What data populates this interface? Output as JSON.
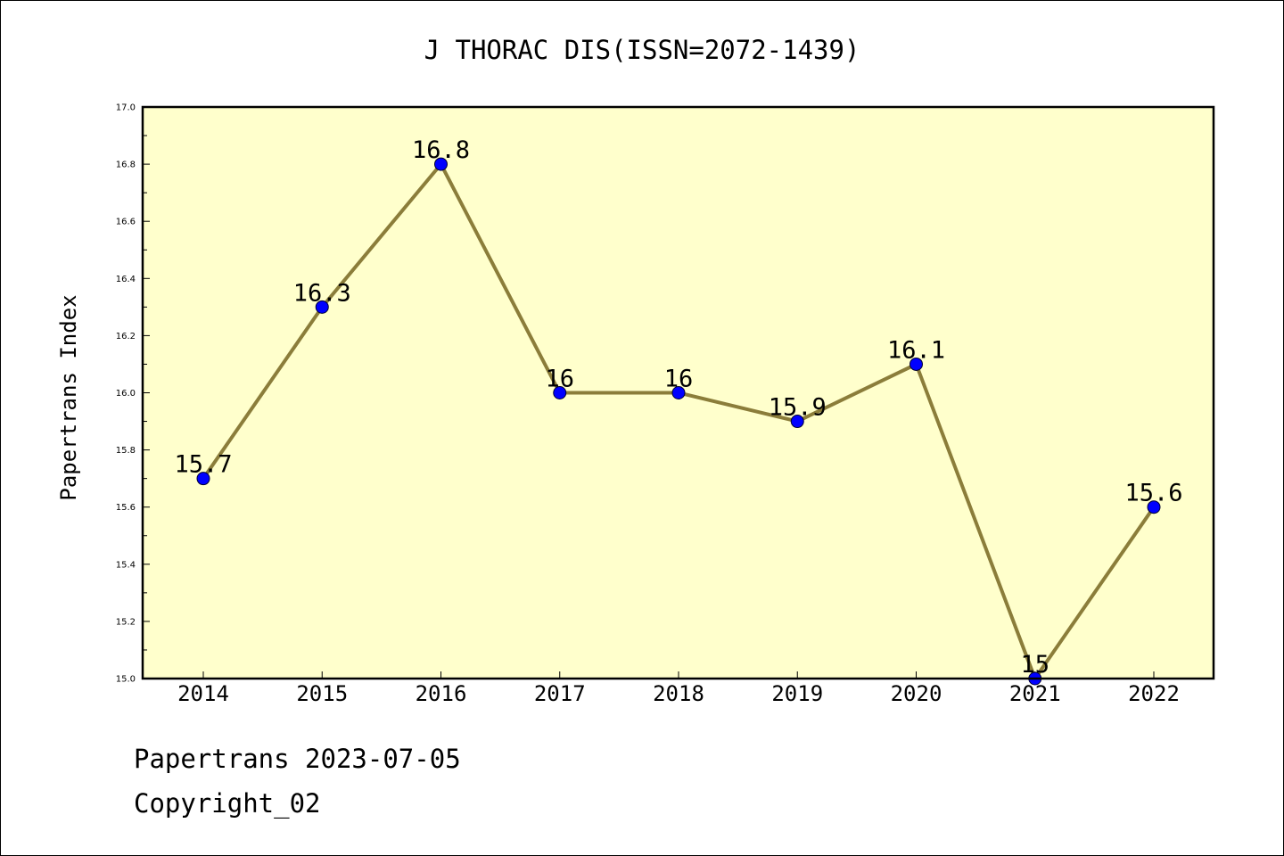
{
  "chart_data": {
    "type": "line",
    "title": "J THORAC DIS(ISSN=2072-1439)",
    "xlabel": "",
    "ylabel": "Papertrans Index",
    "categories": [
      "2014",
      "2015",
      "2016",
      "2017",
      "2018",
      "2019",
      "2020",
      "2021",
      "2022"
    ],
    "series": [
      {
        "values": [
          15.7,
          16.3,
          16.8,
          16.0,
          16.0,
          15.9,
          16.1,
          15.0,
          15.6
        ],
        "labels": [
          "15.7",
          "16.3",
          "16.8",
          "16",
          "16",
          "15.9",
          "16.1",
          "15",
          "15.6"
        ]
      }
    ],
    "ylim": [
      15.0,
      17.0
    ],
    "yticks": [
      "15.0",
      "15.2",
      "15.4",
      "15.6",
      "15.8",
      "16.0",
      "16.2",
      "16.4",
      "16.6",
      "16.8",
      "17.0"
    ],
    "grid": false,
    "legend": "none",
    "colors": {
      "plot_background": "#ffffcc",
      "line": "#8b7d3a",
      "marker": "#0000ff"
    }
  },
  "footer": {
    "date_line": "Papertrans 2023-07-05",
    "copyright": "Copyright_02"
  }
}
